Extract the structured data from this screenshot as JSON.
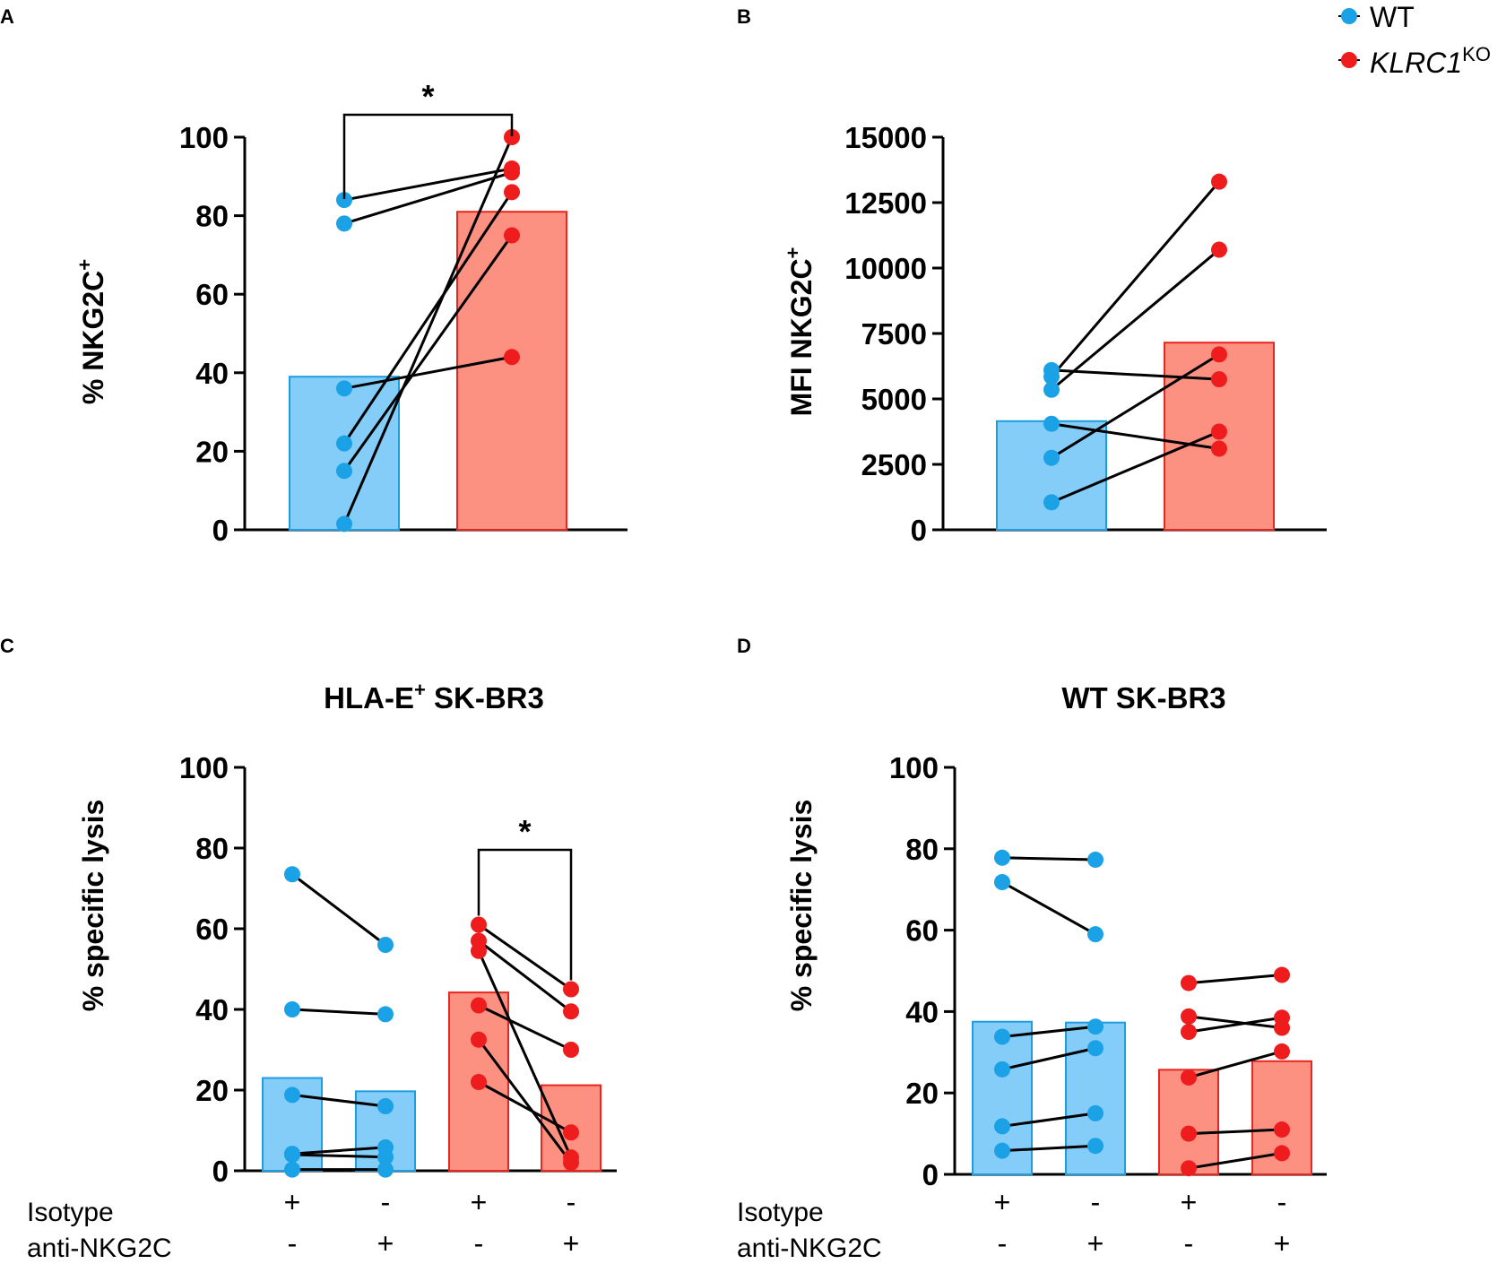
{
  "colors": {
    "wt_dot": "#1ba1e6",
    "wt_bar_fill": "#85cdf9",
    "wt_bar_stroke": "#1e9ee0",
    "ko_dot": "#ee1c1c",
    "ko_bar_fill": "#fc9182",
    "ko_bar_stroke": "#e8251f",
    "line": "#000000"
  },
  "legend": {
    "wt": "WT",
    "ko_main": "KLRC1",
    "ko_sup": "KO"
  },
  "conditions": {
    "isotype_label": "Isotype",
    "anti_label": "anti-NKG2C",
    "isotype_signs": [
      "+",
      "-",
      "+",
      "-"
    ],
    "anti_signs": [
      "-",
      "+",
      "-",
      "+"
    ]
  },
  "chart_data": [
    {
      "panel": "A",
      "type": "bar",
      "title": "",
      "ylabel": "% NKG2C",
      "ylabel_sup": "+",
      "ylim": [
        0,
        100
      ],
      "yticks": [
        "0",
        "20",
        "40",
        "60",
        "80",
        "100"
      ],
      "categories": [
        "WT",
        "KLRC1KO"
      ],
      "bars": [
        39,
        81
      ],
      "points": [
        [
          84,
          92
        ],
        [
          78,
          91
        ],
        [
          36,
          44
        ],
        [
          22,
          86
        ],
        [
          15,
          75
        ],
        [
          1.5,
          100
        ]
      ],
      "significance": [
        {
          "from": 0,
          "to": 1,
          "label": "*"
        }
      ]
    },
    {
      "panel": "B",
      "type": "bar",
      "title": "",
      "ylabel": "MFI NKG2C",
      "ylabel_sup": "+",
      "ylim": [
        0,
        15000
      ],
      "yticks": [
        "0",
        "2500",
        "5000",
        "7500",
        "10000",
        "12500",
        "15000"
      ],
      "categories": [
        "WT",
        "KLRC1KO"
      ],
      "bars": [
        4150,
        7150
      ],
      "points": [
        [
          6100,
          5750
        ],
        [
          5850,
          13300
        ],
        [
          5350,
          10700
        ],
        [
          4050,
          3100
        ],
        [
          2750,
          6700
        ],
        [
          1050,
          3750
        ]
      ],
      "significance": []
    },
    {
      "panel": "C",
      "type": "bar",
      "title": "HLA-E",
      "title_sup": "+",
      "title_rest": " SK-BR3",
      "ylabel": "% specific lysis",
      "ylim": [
        0,
        100
      ],
      "yticks": [
        "0",
        "20",
        "40",
        "60",
        "80",
        "100"
      ],
      "categories": [
        "WT Isotype",
        "WT anti-NKG2C",
        "KLRC1KO Isotype",
        "KLRC1KO anti-NKG2C"
      ],
      "bars": [
        23,
        19.7,
        44.2,
        21.2
      ],
      "pairs": [
        {
          "group": "wt",
          "cols": [
            0,
            1
          ],
          "points": [
            [
              73.5,
              56
            ],
            [
              40,
              38.8
            ],
            [
              18.8,
              16
            ],
            [
              4.2,
              5.8
            ],
            [
              4,
              3.4
            ],
            [
              0.3,
              0.3
            ]
          ]
        },
        {
          "group": "ko",
          "cols": [
            2,
            3
          ],
          "points": [
            [
              61,
              45
            ],
            [
              57,
              39.5
            ],
            [
              54.5,
              3.3
            ],
            [
              41,
              30
            ],
            [
              32.5,
              2
            ],
            [
              22,
              9.5
            ]
          ]
        }
      ],
      "significance": [
        {
          "from": 2,
          "to": 3,
          "label": "*"
        }
      ]
    },
    {
      "panel": "D",
      "type": "bar",
      "title": "WT SK-BR3",
      "ylabel": "% specific lysis",
      "ylim": [
        0,
        100
      ],
      "yticks": [
        "0",
        "20",
        "40",
        "60",
        "80",
        "100"
      ],
      "categories": [
        "WT Isotype",
        "WT anti-NKG2C",
        "KLRC1KO Isotype",
        "KLRC1KO anti-NKG2C"
      ],
      "bars": [
        37.5,
        37.3,
        25.7,
        27.8
      ],
      "pairs": [
        {
          "group": "wt",
          "cols": [
            0,
            1
          ],
          "points": [
            [
              77.8,
              77.3
            ],
            [
              71.8,
              59
            ],
            [
              33.8,
              36.3
            ],
            [
              25.8,
              31
            ],
            [
              11.8,
              15
            ],
            [
              5.8,
              7
            ]
          ]
        },
        {
          "group": "ko",
          "cols": [
            2,
            3
          ],
          "points": [
            [
              47,
              49
            ],
            [
              38.8,
              36
            ],
            [
              35,
              38.5
            ],
            [
              23.8,
              30.2
            ],
            [
              10,
              11
            ],
            [
              1.5,
              5.2
            ]
          ]
        }
      ],
      "significance": []
    }
  ]
}
